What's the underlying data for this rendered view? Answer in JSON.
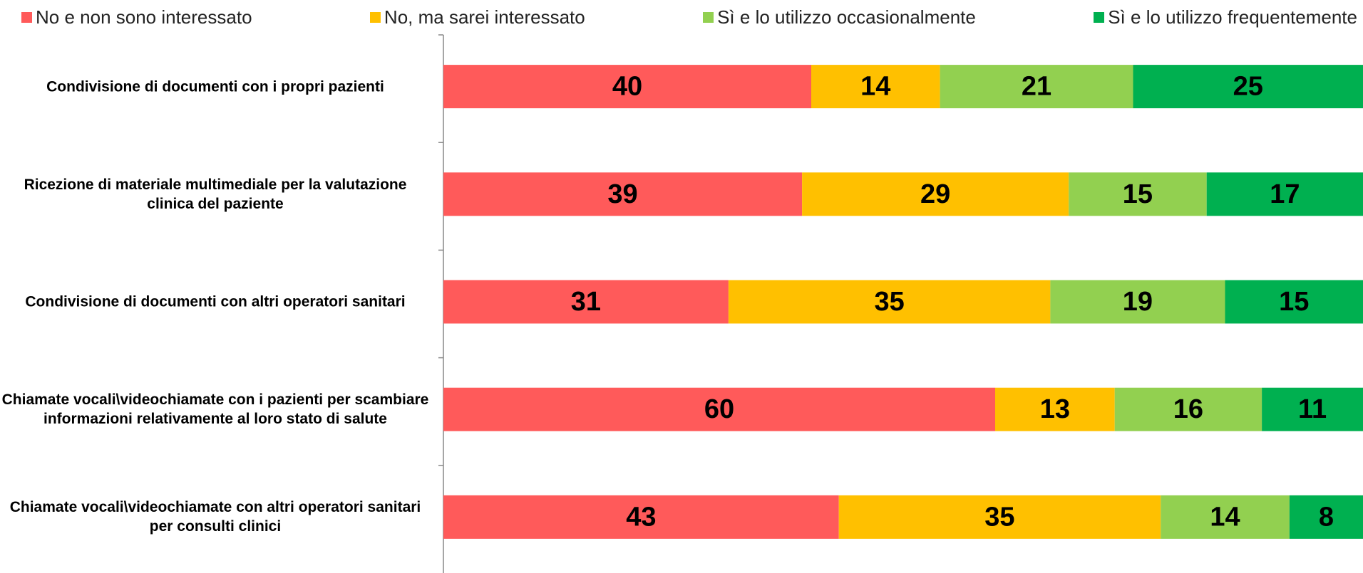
{
  "chart_data": {
    "type": "stacked_barh",
    "categories": [
      "Condivisione di documenti con i propri pazienti",
      "Ricezione di materiale multimediale per la valutazione clinica del paziente",
      "Condivisione di documenti con altri operatori sanitari",
      "Chiamate vocali\\videochiamate con i pazienti per scambiare informazioni relativamente al loro stato di salute",
      "Chiamate vocali\\videochiamate con altri operatori sanitari per consulti clinici"
    ],
    "series": [
      {
        "name": "No e non sono interessato",
        "color": "#ff5a5a",
        "values": [
          40,
          39,
          31,
          60,
          43
        ]
      },
      {
        "name": "No, ma sarei interessato",
        "color": "#ffc000",
        "values": [
          14,
          29,
          35,
          13,
          35
        ]
      },
      {
        "name": "Sì e lo utilizzo occasionalmente",
        "color": "#92d050",
        "values": [
          21,
          15,
          19,
          16,
          14
        ]
      },
      {
        "name": "Sì e lo utilizzo frequentemente",
        "color": "#00b050",
        "values": [
          25,
          17,
          15,
          11,
          8
        ]
      }
    ],
    "xlim": [
      0,
      100
    ],
    "legend": "top"
  }
}
